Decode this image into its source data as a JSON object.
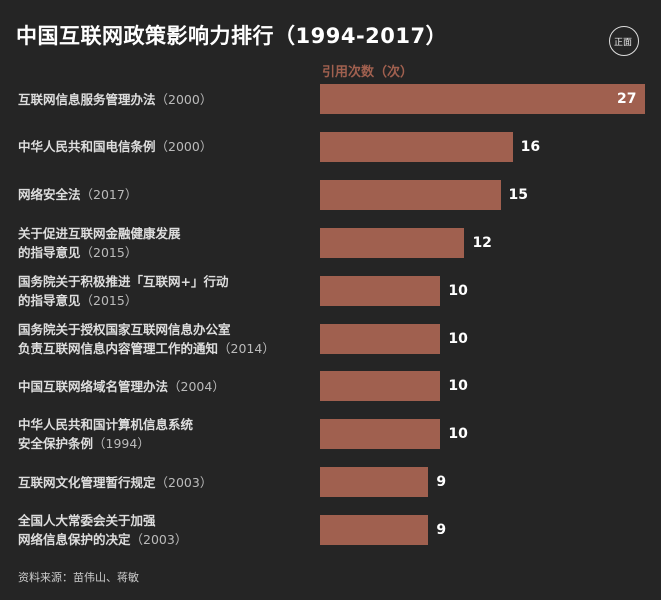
{
  "title": "中国互联网政策影响力排行（1994-2017）",
  "logo_text": "正面",
  "source": "资料来源：苗伟山、蒋敏",
  "colors": {
    "bar": "#a0604f",
    "background": "#252525"
  },
  "chart_data": {
    "type": "bar",
    "orientation": "horizontal",
    "title": "中国互联网政策影响力排行（1994-2017）",
    "xlabel": "引用次数（次）",
    "xlim": [
      0,
      27
    ],
    "categories": [
      {
        "lines": [
          "互联网信息服务管理办法"
        ],
        "year": "（2000）"
      },
      {
        "lines": [
          "中华人民共和国电信条例"
        ],
        "year": "（2000）"
      },
      {
        "lines": [
          "网络安全法"
        ],
        "year": "（2017）"
      },
      {
        "lines": [
          "关于促进互联网金融健康发展",
          "的指导意见"
        ],
        "year": "（2015）"
      },
      {
        "lines": [
          "国务院关于积极推进「互联网+」行动",
          "的指导意见"
        ],
        "year": "（2015）"
      },
      {
        "lines": [
          "国务院关于授权国家互联网信息办公室",
          "负责互联网信息内容管理工作的通知"
        ],
        "year": "（2014）"
      },
      {
        "lines": [
          "中国互联网络域名管理办法"
        ],
        "year": "（2004）"
      },
      {
        "lines": [
          "中华人民共和国计算机信息系统",
          "安全保护条例"
        ],
        "year": "（1994）"
      },
      {
        "lines": [
          "互联网文化管理暂行规定"
        ],
        "year": "（2003）"
      },
      {
        "lines": [
          "全国人大常委会关于加强",
          "网络信息保护的决定"
        ],
        "year": "（2003）"
      }
    ],
    "values": [
      27,
      16,
      15,
      12,
      10,
      10,
      10,
      10,
      9,
      9
    ]
  }
}
